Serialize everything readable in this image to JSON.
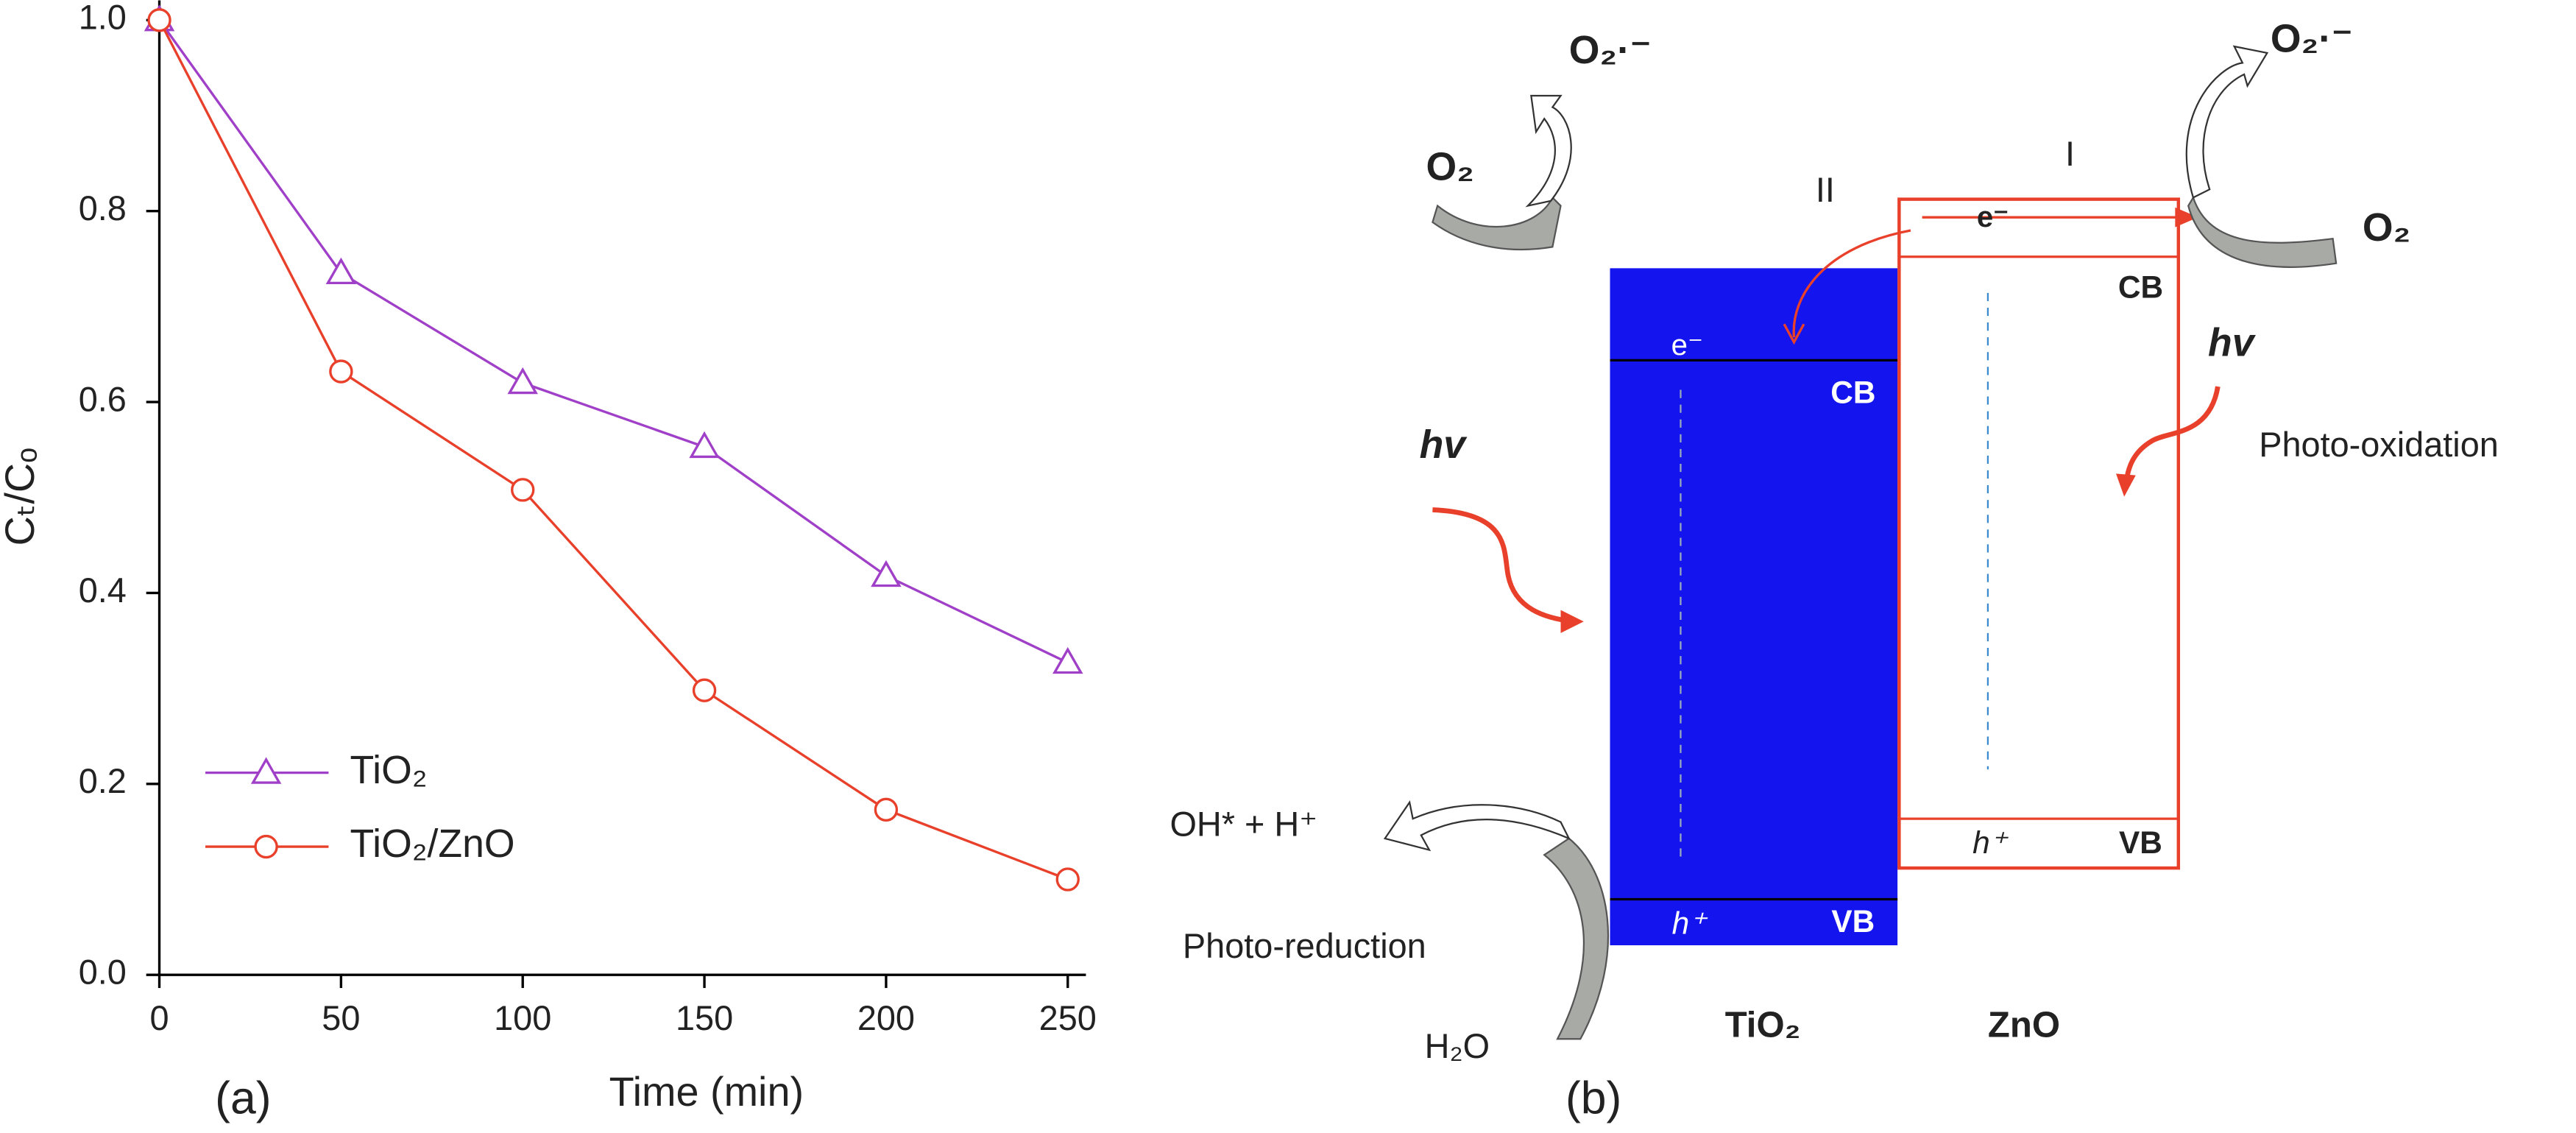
{
  "chart_data": {
    "type": "line",
    "xlabel": "Time (min)",
    "ylabel": "Cₜ/Cₒ",
    "panel_label": "(a)",
    "x": [
      0,
      50,
      100,
      150,
      200,
      250
    ],
    "series": [
      {
        "name": "TiO₂",
        "color": "#a040c8",
        "marker": "triangle",
        "values": [
          1.0,
          0.735,
          0.62,
          0.553,
          0.418,
          0.327
        ]
      },
      {
        "name": "TiO₂/ZnO",
        "color": "#e8402a",
        "marker": "circle",
        "values": [
          1.0,
          0.632,
          0.508,
          0.298,
          0.173,
          0.1
        ]
      }
    ],
    "xlim": [
      0,
      255
    ],
    "ylim": [
      0,
      1.0
    ],
    "xticks": [
      0,
      50,
      100,
      150,
      200,
      250
    ],
    "yticks": [
      {
        "value": 0,
        "label": "0.0"
      },
      0.2,
      0.4,
      0.6,
      0.8,
      {
        "value": 1.0,
        "label": "1.0"
      }
    ],
    "legend": "lower left",
    "grid": false
  },
  "diagram": {
    "panel_label": "(b)",
    "tio2": {
      "label": "TiO₂",
      "electron": "e⁻",
      "cb": "CB",
      "hole": "h⁺",
      "vb": "VB"
    },
    "zno": {
      "label": "ZnO",
      "electron": "e⁻",
      "cb": "CB",
      "hole": "h⁺",
      "vb": "VB"
    },
    "route_1": "I",
    "route_2": "II",
    "left_light": "hv",
    "right_light": "hv",
    "left_o2": "O₂",
    "left_radical": "O₂·⁻",
    "right_o2": "O₂",
    "right_radical": "O₂·⁻",
    "photo_oxidation": "Photo-oxidation",
    "photo_reduction": "Photo-reduction",
    "products": "OH* + H⁺",
    "water": "H₂O"
  }
}
